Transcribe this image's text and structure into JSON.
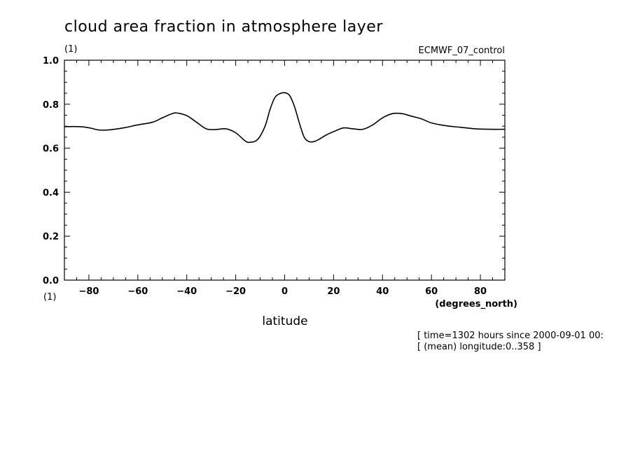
{
  "chart_data": {
    "type": "line",
    "title": "cloud area fraction in atmosphere layer",
    "units": "(1)",
    "dataset": "ECMWF_07_control",
    "xlabel": "latitude",
    "xunits": "(degrees_north)",
    "y_units_bottom": "(1)",
    "xlim": [
      -90,
      90
    ],
    "ylim": [
      0.0,
      1.0
    ],
    "x_ticks": [
      "−80",
      "−60",
      "−40",
      "−20",
      "0",
      "20",
      "40",
      "60",
      "80"
    ],
    "x_tick_values": [
      -80,
      -60,
      -40,
      -20,
      0,
      20,
      40,
      60,
      80
    ],
    "y_ticks": [
      "0.0",
      "0.2",
      "0.4",
      "0.6",
      "0.8",
      "1.0"
    ],
    "y_tick_values": [
      0.0,
      0.2,
      0.4,
      0.6,
      0.8,
      1.0
    ],
    "grid": false,
    "notes": [
      "[ time=1302 hours since 2000-09-01 00:",
      "[ (mean) longitude:0..358 ]"
    ],
    "series": [
      {
        "x": [
          -90,
          -84,
          -80,
          -76,
          -72,
          -66,
          -60,
          -54,
          -50,
          -46,
          -44,
          -40,
          -36,
          -32,
          -28,
          -24,
          -20,
          -16,
          -14,
          -11,
          -8,
          -6,
          -4,
          -2,
          0,
          2,
          4,
          6,
          8,
          10,
          12,
          14,
          17,
          20,
          24,
          28,
          32,
          36,
          40,
          44,
          48,
          52,
          56,
          60,
          66,
          72,
          78,
          84,
          90
        ],
        "y": [
          0.698,
          0.698,
          0.693,
          0.683,
          0.683,
          0.692,
          0.706,
          0.718,
          0.738,
          0.757,
          0.76,
          0.748,
          0.718,
          0.688,
          0.685,
          0.688,
          0.67,
          0.632,
          0.627,
          0.64,
          0.7,
          0.775,
          0.83,
          0.848,
          0.852,
          0.84,
          0.79,
          0.715,
          0.65,
          0.63,
          0.63,
          0.64,
          0.66,
          0.675,
          0.692,
          0.688,
          0.686,
          0.706,
          0.738,
          0.757,
          0.757,
          0.745,
          0.733,
          0.715,
          0.702,
          0.695,
          0.688,
          0.686,
          0.686
        ]
      }
    ]
  }
}
